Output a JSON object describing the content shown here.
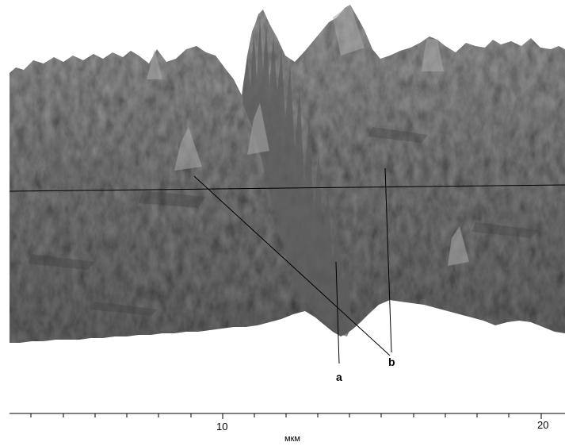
{
  "figure": {
    "labels": {
      "a": "a",
      "b": "b"
    },
    "axis": {
      "ticks": [
        "10",
        "20"
      ],
      "unit": "мкм"
    }
  },
  "colors": {
    "surface_light": "#b9b9b9",
    "surface_mid": "#8c8c8c",
    "surface_dark": "#4a4a4a",
    "line": "#000000",
    "background": "#ffffff"
  }
}
